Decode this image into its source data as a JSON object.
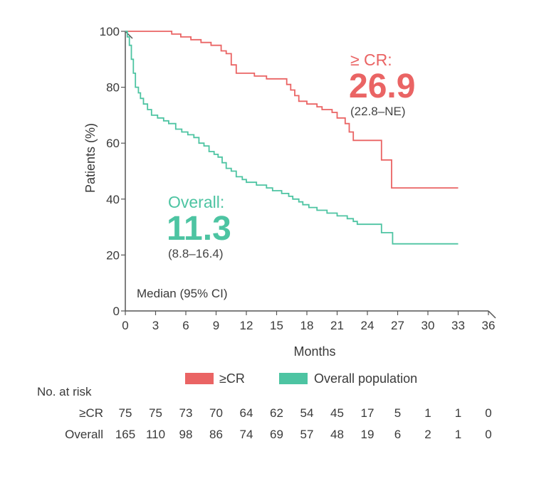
{
  "chart_data": {
    "type": "line",
    "subtype": "kaplan-meier",
    "xlabel": "Months",
    "ylabel": "Patients (%)",
    "xlim": [
      0,
      36
    ],
    "ylim": [
      0,
      100
    ],
    "x_ticks": [
      0,
      3,
      6,
      9,
      12,
      15,
      18,
      21,
      24,
      27,
      30,
      33,
      36
    ],
    "y_ticks": [
      0,
      20,
      40,
      60,
      80,
      100
    ],
    "grid": false,
    "legend_position": "bottom",
    "series": [
      {
        "name": "≥CR",
        "color": "#ea6464",
        "points": [
          [
            0,
            100
          ],
          [
            4.3,
            100
          ],
          [
            4.6,
            99
          ],
          [
            5.5,
            98
          ],
          [
            6.5,
            97
          ],
          [
            7.5,
            96
          ],
          [
            8.5,
            95
          ],
          [
            9.5,
            93
          ],
          [
            10.0,
            92
          ],
          [
            10.5,
            88
          ],
          [
            11.0,
            85
          ],
          [
            12.8,
            84
          ],
          [
            14.0,
            83
          ],
          [
            16.0,
            81
          ],
          [
            16.4,
            79
          ],
          [
            16.8,
            77
          ],
          [
            17.2,
            75
          ],
          [
            18.0,
            74
          ],
          [
            19.0,
            73
          ],
          [
            19.5,
            72
          ],
          [
            20.5,
            71
          ],
          [
            21.0,
            69
          ],
          [
            21.8,
            67
          ],
          [
            22.2,
            64
          ],
          [
            22.6,
            61
          ],
          [
            25.2,
            61
          ],
          [
            25.4,
            54
          ],
          [
            26.0,
            54
          ],
          [
            26.4,
            44
          ],
          [
            33.0,
            44
          ]
        ],
        "median": "26.9",
        "ci": "(22.8–NE)",
        "label": "≥ CR:"
      },
      {
        "name": "Overall population",
        "color": "#4dc4a2",
        "points": [
          [
            0,
            100
          ],
          [
            0.2,
            98
          ],
          [
            0.4,
            95
          ],
          [
            0.6,
            90
          ],
          [
            0.8,
            85
          ],
          [
            1.0,
            80
          ],
          [
            1.3,
            78
          ],
          [
            1.5,
            76
          ],
          [
            1.8,
            74
          ],
          [
            2.2,
            72
          ],
          [
            2.6,
            70
          ],
          [
            3.2,
            69
          ],
          [
            3.8,
            68
          ],
          [
            4.3,
            67
          ],
          [
            5.0,
            65
          ],
          [
            5.6,
            64
          ],
          [
            6.2,
            63
          ],
          [
            6.8,
            62
          ],
          [
            7.3,
            60
          ],
          [
            7.8,
            59
          ],
          [
            8.3,
            57
          ],
          [
            8.8,
            56
          ],
          [
            9.2,
            55
          ],
          [
            9.6,
            53
          ],
          [
            10.0,
            51
          ],
          [
            10.5,
            50
          ],
          [
            11.0,
            48
          ],
          [
            11.6,
            47
          ],
          [
            12.0,
            46
          ],
          [
            13.0,
            45
          ],
          [
            14.0,
            44
          ],
          [
            14.6,
            43
          ],
          [
            15.5,
            42
          ],
          [
            16.2,
            41
          ],
          [
            16.6,
            40
          ],
          [
            17.2,
            39
          ],
          [
            17.6,
            38
          ],
          [
            18.2,
            37
          ],
          [
            19.0,
            36
          ],
          [
            20.0,
            35
          ],
          [
            21.0,
            34
          ],
          [
            22.0,
            33
          ],
          [
            22.6,
            32
          ],
          [
            23.0,
            31
          ],
          [
            25.2,
            31
          ],
          [
            25.4,
            28
          ],
          [
            26.4,
            28
          ],
          [
            26.5,
            24
          ],
          [
            33.0,
            24
          ]
        ],
        "median": "11.3",
        "ci": "(8.8–16.4)",
        "label": "Overall:"
      }
    ],
    "annotations": {
      "median_note": "Median (95% CI)"
    },
    "legend": [
      {
        "label": "≥CR",
        "color": "#ea6464"
      },
      {
        "label": "Overall population",
        "color": "#4dc4a2"
      }
    ],
    "risk_table": {
      "title": "No. at risk",
      "rows": [
        {
          "label": "≥CR",
          "values": [
            "75",
            "75",
            "73",
            "70",
            "64",
            "62",
            "54",
            "45",
            "17",
            "5",
            "1",
            "1",
            "0"
          ]
        },
        {
          "label": "Overall",
          "values": [
            "165",
            "110",
            "98",
            "86",
            "74",
            "69",
            "57",
            "48",
            "19",
            "6",
            "2",
            "1",
            "0"
          ]
        }
      ]
    }
  }
}
